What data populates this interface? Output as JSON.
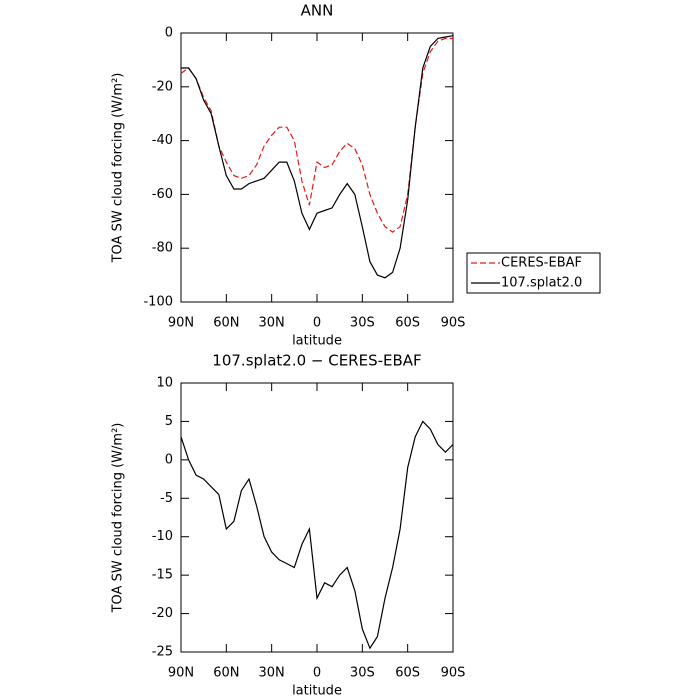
{
  "chart_data": [
    {
      "type": "line",
      "title": "ANN",
      "x_label": "latitude",
      "y_label": "TOA SW cloud forcing (W/m²)",
      "x": [
        90,
        85,
        80,
        75,
        70,
        65,
        60,
        55,
        50,
        45,
        40,
        35,
        30,
        25,
        20,
        15,
        10,
        5,
        0,
        -5,
        -10,
        -15,
        -20,
        -25,
        -30,
        -35,
        -40,
        -45,
        -50,
        -55,
        -60,
        -65,
        -70,
        -75,
        -80,
        -85,
        -90
      ],
      "series": [
        {
          "name": "CERES-EBAF",
          "color": "#e41a1c",
          "line_style": "dashed",
          "values": [
            -15,
            -13,
            -17,
            -24,
            -29,
            -42,
            -48,
            -53,
            -54,
            -53,
            -49,
            -42,
            -38,
            -35,
            -35,
            -40,
            -55,
            -64,
            -48,
            -50,
            -49,
            -44,
            -41,
            -43,
            -49,
            -60,
            -67,
            -72,
            -74,
            -72,
            -60,
            -35,
            -15,
            -7,
            -3,
            -2,
            -2
          ]
        },
        {
          "name": "107.splat2.0",
          "color": "#000000",
          "line_style": "solid",
          "values": [
            -13,
            -13,
            -17,
            -25,
            -30,
            -42,
            -53,
            -58,
            -58,
            -56,
            -55,
            -54,
            -51,
            -48,
            -48,
            -55,
            -67,
            -73,
            -67,
            -66,
            -65,
            -60,
            -56,
            -60,
            -72,
            -85,
            -90,
            -91,
            -89,
            -80,
            -62,
            -35,
            -13,
            -5,
            -2,
            -1.5,
            -1
          ]
        }
      ],
      "xlim": [
        90,
        -90
      ],
      "xticks": [
        {
          "value": 90,
          "label": "90N"
        },
        {
          "value": 60,
          "label": "60N"
        },
        {
          "value": 30,
          "label": "30N"
        },
        0,
        {
          "value": -30,
          "label": "30S"
        },
        {
          "value": -60,
          "label": "60S"
        },
        {
          "value": -90,
          "label": "90S"
        }
      ],
      "ylim": [
        -100,
        0
      ],
      "yticks": [
        -100,
        -80,
        -60,
        -40,
        -20,
        0
      ],
      "legend": "right"
    },
    {
      "type": "line",
      "title": "107.splat2.0 − CERES-EBAF",
      "x_label": "latitude",
      "y_label": "TOA SW cloud forcing (W/m²)",
      "x": [
        90,
        85,
        80,
        75,
        70,
        65,
        60,
        55,
        50,
        45,
        40,
        35,
        30,
        25,
        20,
        15,
        10,
        5,
        0,
        -5,
        -10,
        -15,
        -20,
        -25,
        -30,
        -35,
        -40,
        -45,
        -50,
        -55,
        -60,
        -65,
        -70,
        -75,
        -80,
        -85,
        -90
      ],
      "values": [
        3,
        0,
        -2,
        -2.5,
        -3.5,
        -4.5,
        -9,
        -8,
        -4,
        -2.5,
        -6,
        -10,
        -12,
        -13,
        -13.5,
        -14,
        -11,
        -9,
        -18,
        -16,
        -16.5,
        -15,
        -14,
        -17,
        -22,
        -24.5,
        -23,
        -18,
        -14,
        -9,
        -1,
        3,
        5,
        4,
        2,
        1,
        2
      ],
      "color": "#000000",
      "xlim": [
        90,
        -90
      ],
      "xticks": [
        {
          "value": 90,
          "label": "90N"
        },
        {
          "value": 60,
          "label": "60N"
        },
        {
          "value": 30,
          "label": "30N"
        },
        0,
        {
          "value": -30,
          "label": "30S"
        },
        {
          "value": -60,
          "label": "60S"
        },
        {
          "value": -90,
          "label": "90S"
        }
      ],
      "ylim": [
        -25,
        10
      ],
      "yticks": [
        -25,
        -20,
        -15,
        -10,
        -5,
        0,
        5,
        10
      ]
    }
  ]
}
